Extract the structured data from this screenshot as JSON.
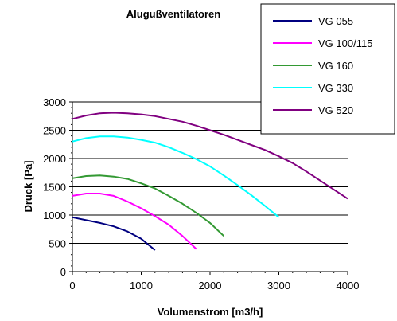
{
  "chart_data": {
    "type": "line",
    "title": "Alugußventilatoren",
    "xlabel": "Volumenstrom [m3/h]",
    "ylabel": "Druck [Pa]",
    "xlim": [
      0,
      4000
    ],
    "ylim": [
      0,
      3000
    ],
    "xticks": [
      0,
      1000,
      2000,
      3000,
      4000
    ],
    "yticks": [
      0,
      500,
      1000,
      1500,
      2000,
      2500,
      3000
    ],
    "grid": "horizontal",
    "legend_position": "top-right",
    "series": [
      {
        "name": "VG 055",
        "color": "#000080",
        "x": [
          0,
          200,
          400,
          600,
          800,
          1000,
          1200
        ],
        "y": [
          960,
          910,
          860,
          800,
          710,
          580,
          380
        ]
      },
      {
        "name": "VG 100/115",
        "color": "#ff00ff",
        "x": [
          0,
          200,
          400,
          600,
          800,
          1000,
          1200,
          1400,
          1600,
          1800
        ],
        "y": [
          1340,
          1380,
          1380,
          1340,
          1240,
          1120,
          980,
          830,
          630,
          400
        ]
      },
      {
        "name": "VG 160",
        "color": "#339933",
        "x": [
          0,
          200,
          400,
          600,
          800,
          1000,
          1200,
          1400,
          1600,
          1800,
          2000,
          2200
        ],
        "y": [
          1650,
          1690,
          1700,
          1680,
          1640,
          1560,
          1470,
          1340,
          1200,
          1040,
          860,
          630
        ]
      },
      {
        "name": "VG 330",
        "color": "#00ffff",
        "x": [
          0,
          200,
          400,
          600,
          800,
          1000,
          1200,
          1400,
          1600,
          1800,
          2000,
          2200,
          2400,
          2600,
          2800,
          3000
        ],
        "y": [
          2300,
          2360,
          2390,
          2390,
          2370,
          2330,
          2280,
          2200,
          2100,
          1990,
          1860,
          1700,
          1530,
          1350,
          1160,
          960
        ]
      },
      {
        "name": "VG 520",
        "color": "#800080",
        "x": [
          0,
          200,
          400,
          600,
          800,
          1000,
          1200,
          1400,
          1600,
          1800,
          2000,
          2200,
          2400,
          2600,
          2800,
          3000,
          3200,
          3400,
          3600,
          3800,
          4000
        ],
        "y": [
          2700,
          2760,
          2800,
          2810,
          2800,
          2780,
          2750,
          2700,
          2650,
          2580,
          2500,
          2420,
          2330,
          2240,
          2150,
          2040,
          1920,
          1770,
          1610,
          1450,
          1290
        ]
      }
    ]
  }
}
